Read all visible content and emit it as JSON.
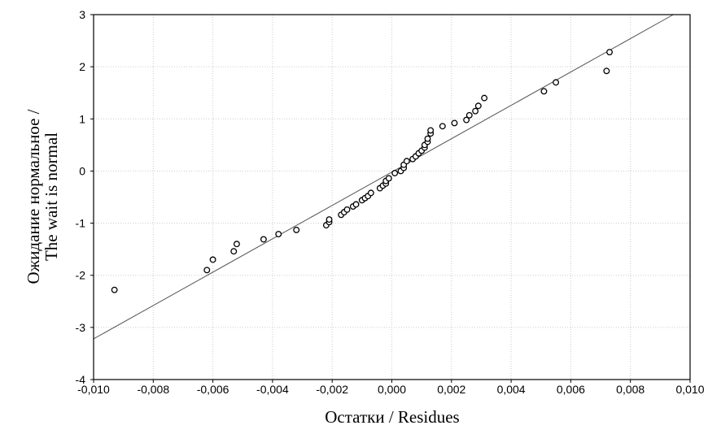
{
  "chart_data": {
    "type": "scatter",
    "title": "",
    "xlabel": "Остатки / Residues",
    "ylabel_lines": [
      "Ожидание нормальное /",
      "The wait is normal"
    ],
    "xlim": [
      -0.01,
      0.01
    ],
    "ylim": [
      -4,
      3
    ],
    "grid": true,
    "x_ticks": [
      "-0,010",
      "-0,008",
      "-0,006",
      "-0,004",
      "-0,002",
      "0,000",
      "0,002",
      "0,004",
      "0,006",
      "0,008",
      "0,010"
    ],
    "x_tick_values": [
      -0.01,
      -0.008,
      -0.006,
      -0.004,
      -0.002,
      0,
      0.002,
      0.004,
      0.006,
      0.008,
      0.01
    ],
    "y_ticks": [
      "3",
      "2",
      "1",
      "0",
      "-1",
      "-2",
      "-3",
      "-4"
    ],
    "y_tick_values": [
      3,
      2,
      1,
      0,
      -1,
      -2,
      -3,
      -4
    ],
    "reference_line": {
      "slope": 320,
      "intercept": -0.02
    },
    "points": [
      [
        -0.0093,
        -2.28
      ],
      [
        -0.0062,
        -1.9
      ],
      [
        -0.006,
        -1.7
      ],
      [
        -0.0053,
        -1.54
      ],
      [
        -0.0052,
        -1.4
      ],
      [
        -0.0043,
        -1.31
      ],
      [
        -0.0038,
        -1.21
      ],
      [
        -0.0032,
        -1.13
      ],
      [
        -0.0022,
        -1.04
      ],
      [
        -0.0021,
        -0.98
      ],
      [
        -0.0021,
        -0.93
      ],
      [
        -0.0017,
        -0.84
      ],
      [
        -0.0016,
        -0.79
      ],
      [
        -0.0015,
        -0.74
      ],
      [
        -0.0013,
        -0.68
      ],
      [
        -0.0012,
        -0.64
      ],
      [
        -0.001,
        -0.56
      ],
      [
        -0.0009,
        -0.52
      ],
      [
        -0.0008,
        -0.48
      ],
      [
        -0.0007,
        -0.42
      ],
      [
        -0.0004,
        -0.33
      ],
      [
        -0.0003,
        -0.28
      ],
      [
        -0.0002,
        -0.24
      ],
      [
        -0.0002,
        -0.19
      ],
      [
        -0.0001,
        -0.14
      ],
      [
        0.0001,
        -0.04
      ],
      [
        0.0003,
        0.0
      ],
      [
        0.0004,
        0.06
      ],
      [
        0.0004,
        0.12
      ],
      [
        0.0005,
        0.19
      ],
      [
        0.0007,
        0.23
      ],
      [
        0.0008,
        0.28
      ],
      [
        0.0009,
        0.34
      ],
      [
        0.001,
        0.39
      ],
      [
        0.0011,
        0.45
      ],
      [
        0.0011,
        0.5
      ],
      [
        0.0012,
        0.56
      ],
      [
        0.0012,
        0.62
      ],
      [
        0.0013,
        0.72
      ],
      [
        0.0013,
        0.78
      ],
      [
        0.0017,
        0.86
      ],
      [
        0.0021,
        0.92
      ],
      [
        0.0025,
        0.98
      ],
      [
        0.0026,
        1.07
      ],
      [
        0.0028,
        1.15
      ],
      [
        0.0029,
        1.25
      ],
      [
        0.0031,
        1.4
      ],
      [
        0.0051,
        1.53
      ],
      [
        0.0055,
        1.7
      ],
      [
        0.0072,
        1.92
      ],
      [
        0.0073,
        2.28
      ]
    ]
  }
}
